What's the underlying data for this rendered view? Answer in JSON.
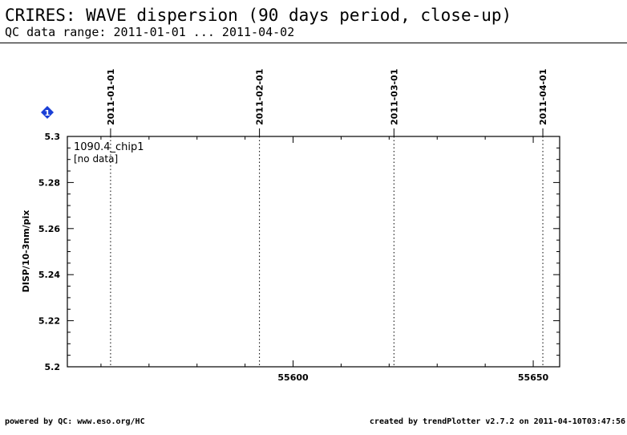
{
  "header": {
    "title": "CRIRES: WAVE dispersion (90 days period, close-up)",
    "subtitle": "QC data range: 2011-01-01 ... 2011-04-02"
  },
  "footer": {
    "left": "powered by QC: www.eso.org/HC",
    "right": "created by trendPlotter v2.7.2 on 2011-04-10T03:47:56"
  },
  "marker": {
    "label": "1",
    "color": "#1a3fd6"
  },
  "chart_data": {
    "type": "scatter",
    "title": "",
    "ylabel": "DISP/10-3nm/pix",
    "xlabel": "",
    "xlim": [
      55553.0,
      55655.5
    ],
    "ylim": [
      5.2,
      5.3
    ],
    "x_ticks": [
      55600,
      55650
    ],
    "y_ticks": [
      5.2,
      5.22,
      5.24,
      5.26,
      5.28,
      5.3
    ],
    "date_lines": [
      {
        "x": 55562,
        "label": "2011-01-01"
      },
      {
        "x": 55593,
        "label": "2011-02-01"
      },
      {
        "x": 55621,
        "label": "2011-03-01"
      },
      {
        "x": 55652,
        "label": "2011-04-01"
      }
    ],
    "panel_label": "1090.4_chip1",
    "no_data_label": "[no data]",
    "series": []
  }
}
